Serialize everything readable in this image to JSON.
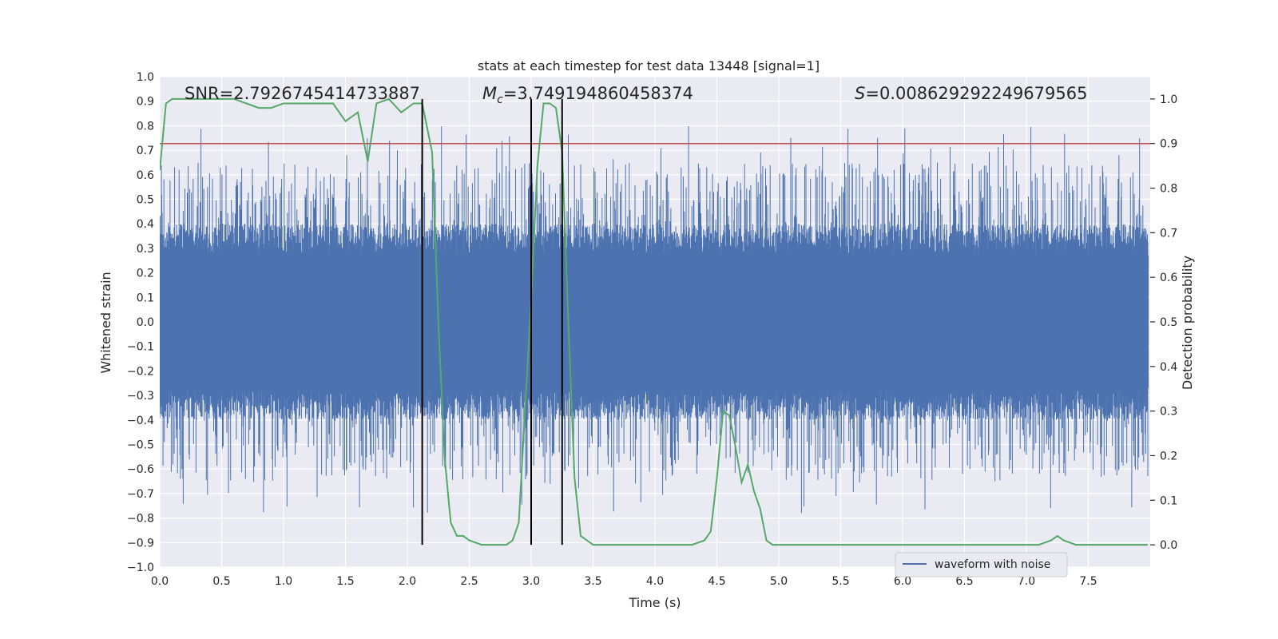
{
  "chart_data": {
    "type": "line",
    "title": "stats at each timestep for test data 13448 [signal=1]",
    "xlabel": "Time (s)",
    "ylabel": "Whitened strain",
    "y2label": "Detection probability",
    "xlim": [
      0.0,
      8.0
    ],
    "ylim": [
      -1.0,
      1.0
    ],
    "y2lim": [
      -0.05,
      1.05
    ],
    "x_ticks": [
      "0.0",
      "0.5",
      "1.0",
      "1.5",
      "2.0",
      "2.5",
      "3.0",
      "3.5",
      "4.0",
      "4.5",
      "5.0",
      "5.5",
      "6.0",
      "6.5",
      "7.0",
      "7.5"
    ],
    "y_ticks": [
      "1.0",
      "0.9",
      "0.8",
      "0.7",
      "0.6",
      "0.5",
      "0.4",
      "0.3",
      "0.2",
      "0.1",
      "0.0",
      "−0.1",
      "−0.2",
      "−0.3",
      "−0.4",
      "−0.5",
      "−0.6",
      "−0.7",
      "−0.8",
      "−0.9",
      "−1.0"
    ],
    "y2_ticks": [
      "1.0",
      "0.9",
      "0.8",
      "0.7",
      "0.6",
      "0.5",
      "0.4",
      "0.3",
      "0.2",
      "0.1",
      "0.0"
    ],
    "grid": true,
    "legend_position": "lower-right",
    "annotations": {
      "snr": "SNR=2.7926745414733887",
      "mc_symbol": "M",
      "mc_sub": "c",
      "mc_value": "=3.749194860458374",
      "s_symbol": "S",
      "s_value": "=0.008629292249679565"
    },
    "series": [
      {
        "name": "waveform with noise",
        "axis": "left",
        "color": "#4c72b0",
        "description": "dense whitened strain noise, core amplitude about ±0.3, spikes to about ±0.8",
        "core_amplitude": 0.28,
        "peak_amplitude": 0.8
      },
      {
        "axis": "right",
        "color": "#55a868",
        "x": [
          0.0,
          0.05,
          0.1,
          0.2,
          0.3,
          0.4,
          0.5,
          0.6,
          0.7,
          0.8,
          0.9,
          1.0,
          1.1,
          1.2,
          1.3,
          1.4,
          1.5,
          1.6,
          1.68,
          1.75,
          1.85,
          1.95,
          2.05,
          2.12,
          2.2,
          2.25,
          2.3,
          2.35,
          2.4,
          2.45,
          2.5,
          2.6,
          2.7,
          2.8,
          2.85,
          2.9,
          3.0,
          3.05,
          3.1,
          3.15,
          3.2,
          3.25,
          3.3,
          3.35,
          3.4,
          3.45,
          3.5,
          3.6,
          3.7,
          3.8,
          3.9,
          4.0,
          4.1,
          4.2,
          4.3,
          4.4,
          4.45,
          4.5,
          4.55,
          4.6,
          4.65,
          4.7,
          4.75,
          4.8,
          4.85,
          4.9,
          4.95,
          5.0,
          5.1,
          5.2,
          5.3,
          5.4,
          5.5,
          5.6,
          5.8,
          6.0,
          6.2,
          6.4,
          6.6,
          6.8,
          7.0,
          7.1,
          7.2,
          7.25,
          7.3,
          7.4,
          7.5,
          7.6,
          7.7,
          7.8,
          7.9,
          7.98
        ],
        "y": [
          0.84,
          0.99,
          1.0,
          1.0,
          1.0,
          1.0,
          1.0,
          1.0,
          0.99,
          0.98,
          0.98,
          0.99,
          0.99,
          0.99,
          0.99,
          0.99,
          0.95,
          0.97,
          0.86,
          0.99,
          1.0,
          0.97,
          0.99,
          0.99,
          0.88,
          0.5,
          0.2,
          0.05,
          0.02,
          0.02,
          0.01,
          0.0,
          0.0,
          0.0,
          0.01,
          0.05,
          0.55,
          0.85,
          0.99,
          0.99,
          0.98,
          0.88,
          0.5,
          0.15,
          0.02,
          0.01,
          0.0,
          0.0,
          0.0,
          0.0,
          0.0,
          0.0,
          0.0,
          0.0,
          0.0,
          0.01,
          0.03,
          0.15,
          0.3,
          0.29,
          0.22,
          0.14,
          0.18,
          0.12,
          0.08,
          0.01,
          0.0,
          0.0,
          0.0,
          0.0,
          0.0,
          0.0,
          0.0,
          0.0,
          0.0,
          0.0,
          0.0,
          0.0,
          0.0,
          0.0,
          0.0,
          0.0,
          0.01,
          0.02,
          0.01,
          0.0,
          0.0,
          0.0,
          0.0,
          0.0,
          0.0,
          0.0
        ]
      }
    ],
    "threshold": {
      "axis": "right",
      "value": 0.9,
      "color": "#c44e52"
    },
    "vertical_lines": {
      "x": [
        2.12,
        3.0,
        3.25
      ],
      "y_range_right": [
        0.0,
        1.0
      ],
      "color": "#000000"
    }
  }
}
